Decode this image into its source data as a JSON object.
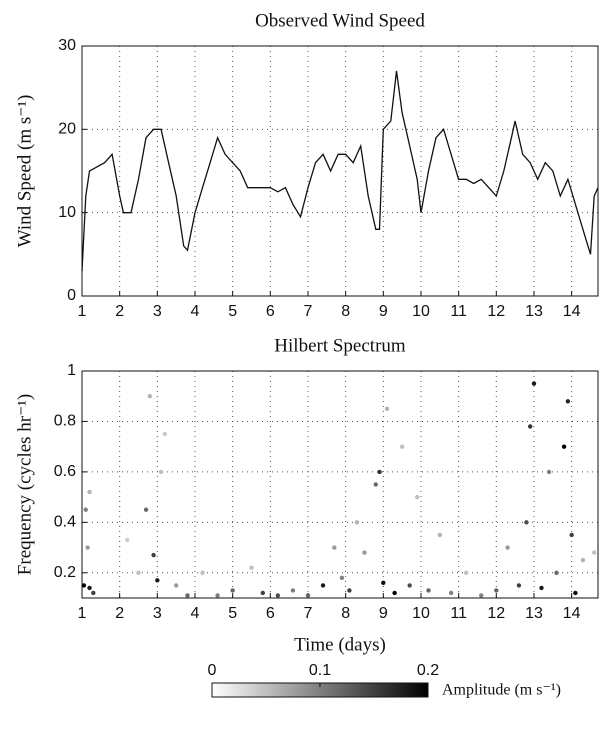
{
  "chart_data": [
    {
      "type": "line",
      "title": "Observed Wind Speed",
      "ylabel": "Wind Speed (m s⁻¹)",
      "color": "#111111",
      "grid": true,
      "xlim": [
        1,
        14.7
      ],
      "xticks": [
        1,
        2,
        3,
        4,
        5,
        6,
        7,
        8,
        9,
        10,
        11,
        12,
        13,
        14
      ],
      "ylim": [
        0,
        30
      ],
      "yticks": [
        0,
        10,
        20,
        30
      ],
      "x": [
        1.0,
        1.1,
        1.2,
        1.4,
        1.6,
        1.8,
        2.0,
        2.1,
        2.3,
        2.5,
        2.7,
        2.9,
        3.1,
        3.3,
        3.5,
        3.7,
        3.8,
        4.0,
        4.2,
        4.4,
        4.6,
        4.8,
        5.0,
        5.2,
        5.4,
        5.6,
        5.8,
        6.0,
        6.2,
        6.4,
        6.6,
        6.8,
        7.0,
        7.2,
        7.4,
        7.6,
        7.8,
        8.0,
        8.2,
        8.4,
        8.6,
        8.8,
        8.9,
        9.0,
        9.2,
        9.35,
        9.5,
        9.7,
        9.9,
        10.0,
        10.2,
        10.4,
        10.6,
        10.8,
        11.0,
        11.2,
        11.4,
        11.6,
        11.8,
        12.0,
        12.2,
        12.4,
        12.5,
        12.7,
        12.9,
        13.1,
        13.3,
        13.5,
        13.7,
        13.9,
        14.1,
        14.3,
        14.5,
        14.6,
        14.7
      ],
      "values": [
        3,
        12,
        15,
        15.5,
        16,
        17,
        12,
        10,
        10,
        14,
        19,
        20,
        20,
        16,
        12,
        6,
        5.5,
        10,
        13,
        16,
        19,
        17,
        16,
        15,
        13,
        13,
        13,
        13,
        12.5,
        13,
        11,
        9.5,
        13,
        16,
        17,
        15,
        17,
        17,
        16,
        18,
        12,
        8,
        8,
        20,
        21,
        27,
        22,
        18,
        14,
        10,
        15,
        19,
        20,
        17,
        14,
        14,
        13.5,
        14,
        13,
        12,
        15,
        19,
        21,
        17,
        16,
        14,
        16,
        15,
        12,
        14,
        11,
        8,
        5,
        12,
        13
      ]
    },
    {
      "type": "scatter",
      "title": "Hilbert Spectrum",
      "ylabel": "Frequency (cycles hr⁻¹)",
      "xlabel": "Time (days)",
      "grid": true,
      "xlim": [
        1,
        14.7
      ],
      "xticks": [
        1,
        2,
        3,
        4,
        5,
        6,
        7,
        8,
        9,
        10,
        11,
        12,
        13,
        14
      ],
      "ylim": [
        0.1,
        1
      ],
      "yticks": [
        0.2,
        0.4,
        0.6,
        0.8,
        1
      ],
      "colorbar_label": "Amplitude (m s⁻¹)",
      "clim": [
        0,
        0.2
      ],
      "cticks": [
        0,
        0.1,
        0.2
      ],
      "x": [
        1.05,
        1.2,
        1.3,
        1.1,
        1.15,
        1.2,
        2.2,
        2.5,
        2.7,
        2.8,
        2.9,
        3.0,
        3.1,
        3.2,
        3.5,
        3.8,
        4.2,
        4.6,
        5.0,
        5.5,
        5.8,
        6.2,
        6.6,
        7.0,
        7.4,
        7.7,
        7.9,
        8.1,
        8.3,
        8.5,
        8.8,
        8.9,
        9.0,
        9.1,
        9.3,
        9.5,
        9.7,
        9.9,
        10.2,
        10.5,
        10.8,
        11.2,
        11.6,
        12.0,
        12.3,
        12.6,
        12.8,
        12.9,
        13.0,
        13.2,
        13.4,
        13.6,
        13.8,
        13.9,
        14.0,
        14.1,
        14.3,
        14.6
      ],
      "values": [
        0.15,
        0.14,
        0.12,
        0.45,
        0.3,
        0.52,
        0.33,
        0.2,
        0.45,
        0.9,
        0.27,
        0.17,
        0.6,
        0.75,
        0.15,
        0.11,
        0.2,
        0.11,
        0.13,
        0.22,
        0.12,
        0.11,
        0.13,
        0.11,
        0.15,
        0.3,
        0.18,
        0.13,
        0.4,
        0.28,
        0.55,
        0.6,
        0.16,
        0.85,
        0.12,
        0.7,
        0.15,
        0.5,
        0.13,
        0.35,
        0.12,
        0.2,
        0.11,
        0.13,
        0.3,
        0.15,
        0.4,
        0.78,
        0.95,
        0.14,
        0.6,
        0.2,
        0.7,
        0.88,
        0.35,
        0.12,
        0.25,
        0.28
      ],
      "amplitude": [
        0.2,
        0.18,
        0.15,
        0.1,
        0.08,
        0.06,
        0.04,
        0.05,
        0.12,
        0.06,
        0.15,
        0.18,
        0.05,
        0.04,
        0.08,
        0.12,
        0.05,
        0.1,
        0.12,
        0.05,
        0.15,
        0.14,
        0.1,
        0.12,
        0.18,
        0.08,
        0.1,
        0.15,
        0.06,
        0.08,
        0.12,
        0.16,
        0.19,
        0.06,
        0.2,
        0.05,
        0.14,
        0.05,
        0.12,
        0.06,
        0.1,
        0.05,
        0.1,
        0.12,
        0.08,
        0.15,
        0.14,
        0.16,
        0.18,
        0.18,
        0.1,
        0.12,
        0.2,
        0.17,
        0.15,
        0.19,
        0.06,
        0.05
      ]
    }
  ]
}
